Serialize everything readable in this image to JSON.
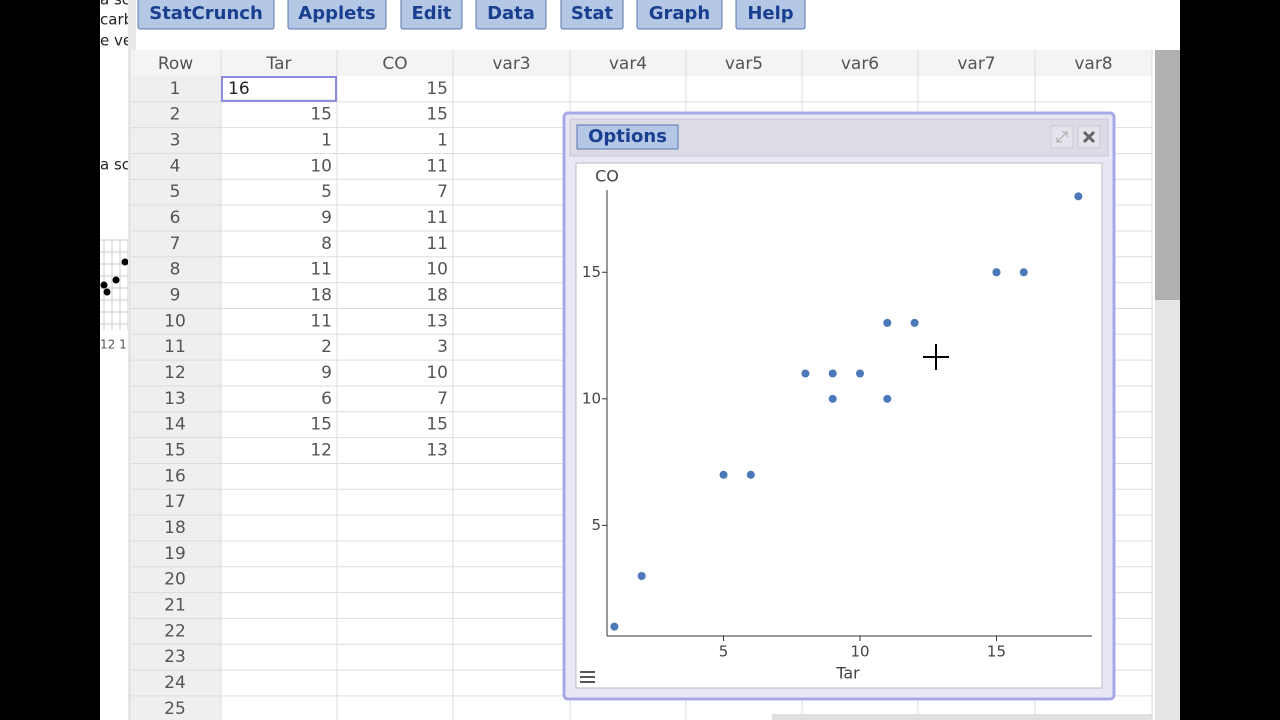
{
  "side_fragments": [
    "a sc",
    "carb",
    "e ve",
    "a sc",
    "12 1"
  ],
  "menu": [
    "StatCrunch",
    "Applets",
    "Edit",
    "Data",
    "Stat",
    "Graph",
    "Help"
  ],
  "table": {
    "columns": [
      "Row",
      "Tar",
      "CO",
      "var3",
      "var4",
      "var5",
      "var6",
      "var7",
      "var8"
    ],
    "row_numbers": [
      "1",
      "2",
      "3",
      "4",
      "5",
      "6",
      "7",
      "8",
      "9",
      "10",
      "11",
      "12",
      "13",
      "14",
      "15",
      "16",
      "17",
      "18",
      "19",
      "20",
      "21",
      "22",
      "23",
      "24",
      "25"
    ],
    "rows": [
      [
        16,
        15
      ],
      [
        15,
        15
      ],
      [
        1,
        1
      ],
      [
        10,
        11
      ],
      [
        5,
        7
      ],
      [
        9,
        11
      ],
      [
        8,
        11
      ],
      [
        11,
        10
      ],
      [
        18,
        18
      ],
      [
        11,
        13
      ],
      [
        2,
        3
      ],
      [
        9,
        10
      ],
      [
        6,
        7
      ],
      [
        15,
        15
      ],
      [
        12,
        13
      ]
    ]
  },
  "graph_window": {
    "options_label": "Options",
    "chart_data": {
      "type": "scatter",
      "x_label": "Tar",
      "y_label": "CO",
      "color": "#4a78b8",
      "xlim": [
        0.73,
        18.5
      ],
      "ylim": [
        0.63,
        18.25
      ],
      "xticks": [
        5,
        10,
        15
      ],
      "yticks": [
        5,
        10,
        15
      ]
    }
  }
}
